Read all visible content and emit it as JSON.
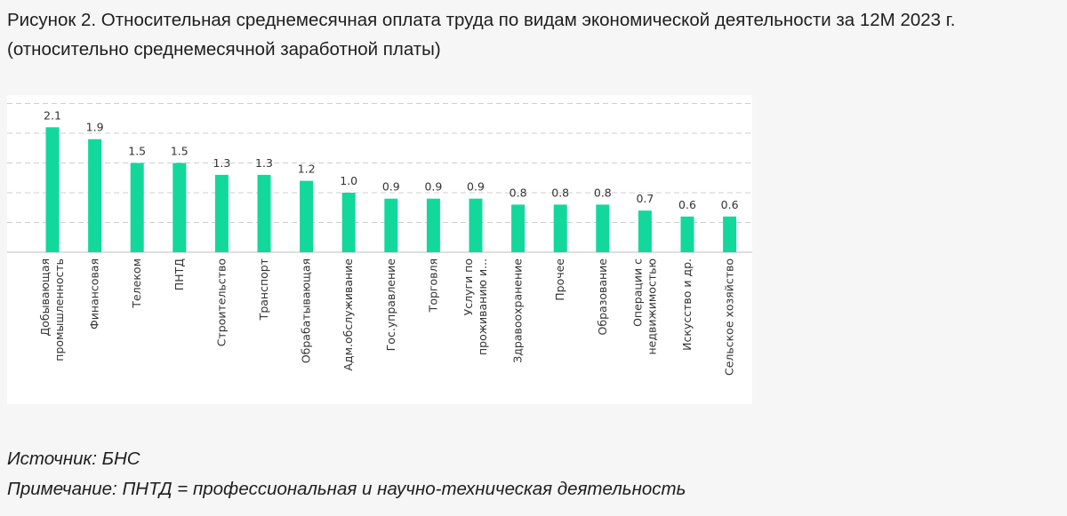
{
  "figure": {
    "title": "Рисунок 2. Относительная среднемесячная оплата труда по видам экономической деятельности за 12М 2023 г. (относительно среднемесячной заработной платы)"
  },
  "chart_data": {
    "type": "bar",
    "title": "",
    "xlabel": "",
    "ylabel": "",
    "ylim": [
      0,
      2.5
    ],
    "grid": true,
    "legend": "none",
    "bar_color": "#12d89b",
    "categories": [
      [
        "Добывающая",
        "промышленность"
      ],
      [
        "Финансовая"
      ],
      [
        "Телеком"
      ],
      [
        "ПНТД"
      ],
      [
        "Строительство"
      ],
      [
        "Транспорт"
      ],
      [
        "Обрабатывающая"
      ],
      [
        "Адм.обслуживание"
      ],
      [
        "Гос.управление"
      ],
      [
        "Торговля"
      ],
      [
        "Услуги по",
        "проживанию и..."
      ],
      [
        "Здравоохранение"
      ],
      [
        "Прочее"
      ],
      [
        "Образование"
      ],
      [
        "Операции с",
        "недвижимостью"
      ],
      [
        "Искусство и др."
      ],
      [
        "Сельское хозяйство"
      ]
    ],
    "values": [
      2.1,
      1.9,
      1.5,
      1.5,
      1.3,
      1.3,
      1.2,
      1.0,
      0.9,
      0.9,
      0.9,
      0.8,
      0.8,
      0.8,
      0.7,
      0.6,
      0.6
    ],
    "value_labels": [
      "2.1",
      "1.9",
      "1.5",
      "1.5",
      "1.3",
      "1.3",
      "1.2",
      "1.0",
      "0.9",
      "0.9",
      "0.9",
      "0.8",
      "0.8",
      "0.8",
      "0.7",
      "0.6",
      "0.6"
    ]
  },
  "footer": {
    "source": "Источник: БНС",
    "note": "Примечание: ПНТД = профессиональная и научно-техническая деятельность"
  }
}
